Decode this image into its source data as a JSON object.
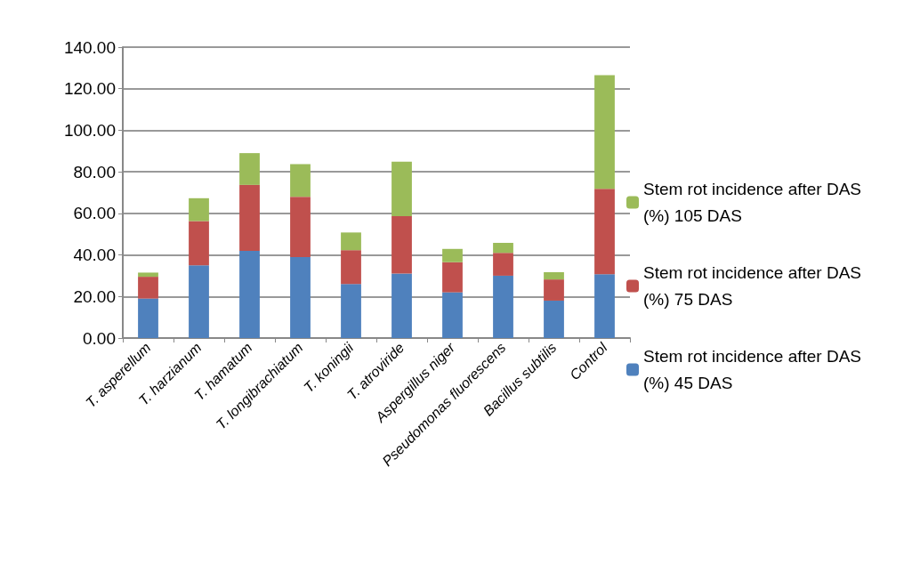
{
  "chart_data": {
    "type": "bar",
    "stacked": true,
    "categories": [
      "T. asperellum",
      "T. harzianum",
      "T. hamatum",
      "T. longibrachiatum",
      "T. koningii",
      "T. atroviride",
      "Aspergillus niger",
      "Pseudomonas fluorescens",
      "Bacillus subtilis",
      "Control"
    ],
    "series": [
      {
        "name": "Stem rot incidence after DAS (%) 45 DAS",
        "color": "#4f81bd",
        "values": [
          19,
          35,
          42,
          39,
          26,
          31,
          22,
          30,
          18,
          30.7
        ]
      },
      {
        "name": "Stem rot incidence after DAS (%) 75 DAS",
        "color": "#c0504d",
        "values": [
          10.5,
          21.3,
          31.7,
          29,
          16.3,
          27.7,
          14.5,
          11,
          10.2,
          41.1
        ]
      },
      {
        "name": "Stem rot incidence after DAS (%) 105 DAS",
        "color": "#9bbb59",
        "values": [
          2,
          11,
          15.3,
          15.7,
          8.5,
          26.2,
          6.4,
          4.8,
          3.5,
          54.7
        ]
      }
    ],
    "ylim": [
      0,
      140
    ],
    "yticks": [
      {
        "value": 0,
        "label": "0.00"
      },
      {
        "value": 20,
        "label": "20.00"
      },
      {
        "value": 40,
        "label": "40.00"
      },
      {
        "value": 60,
        "label": "60.00"
      },
      {
        "value": 80,
        "label": "80.00"
      },
      {
        "value": 100,
        "label": "100.00"
      },
      {
        "value": 120,
        "label": "120.00"
      },
      {
        "value": 140,
        "label": "140.00"
      }
    ],
    "grid": "y",
    "legend": "right"
  }
}
